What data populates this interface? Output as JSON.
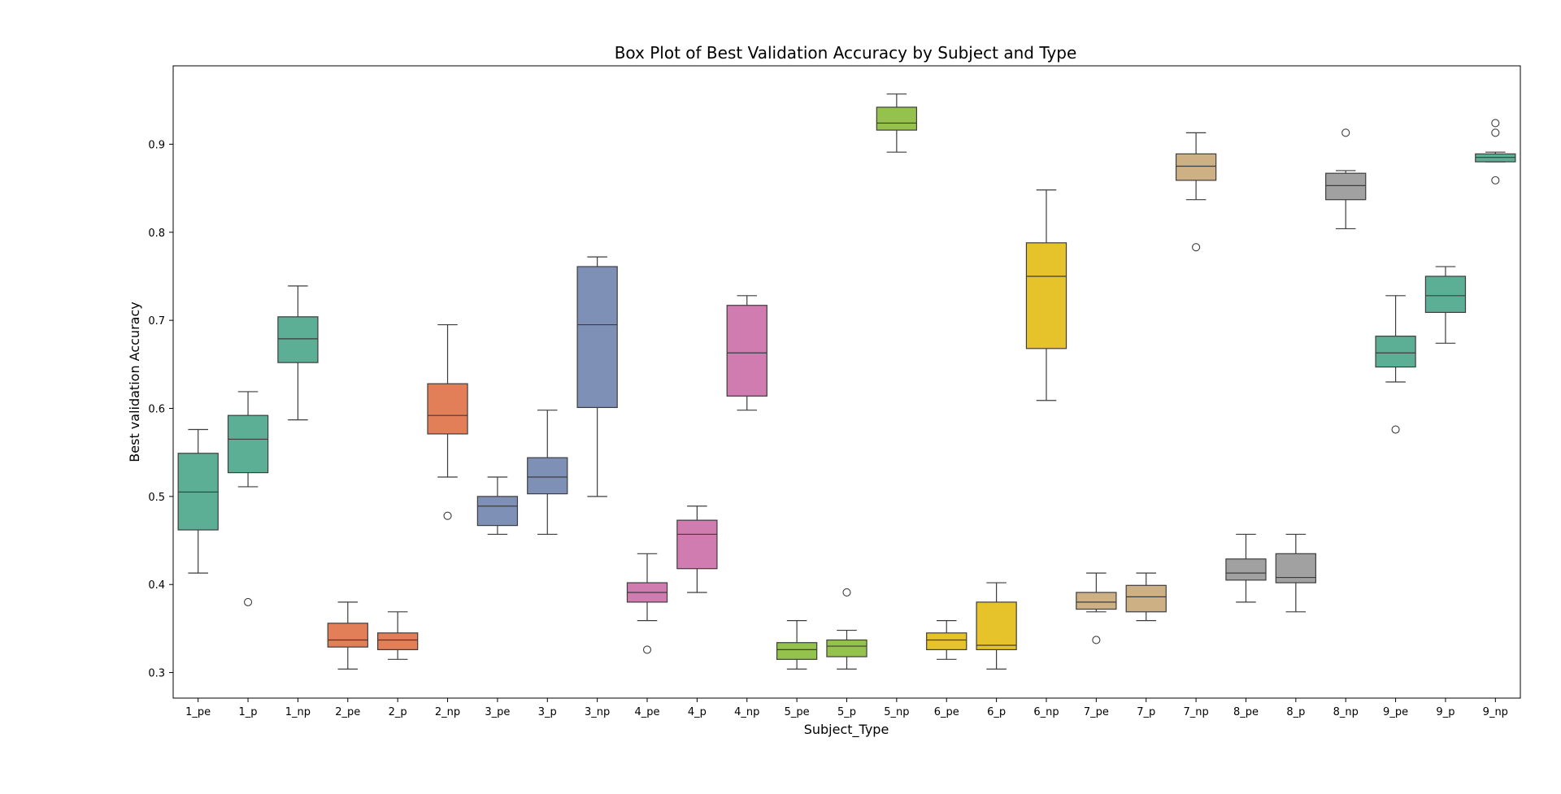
{
  "chart_data": {
    "type": "box",
    "title": "Box Plot of Best Validation Accuracy by Subject and Type",
    "xlabel": "Subject_Type",
    "ylabel": "Best validation Accuracy",
    "ylim": [
      0.271,
      0.989
    ],
    "yticks": [
      "0.3",
      "0.4",
      "0.5",
      "0.6",
      "0.7",
      "0.8",
      "0.9"
    ],
    "grid": false,
    "legend": "none",
    "categories": [
      "1_pe",
      "1_p",
      "1_np",
      "2_pe",
      "2_p",
      "2_np",
      "3_pe",
      "3_p",
      "3_np",
      "4_pe",
      "4_p",
      "4_np",
      "5_pe",
      "5_p",
      "5_np",
      "6_pe",
      "6_p",
      "6_np",
      "7_pe",
      "7_p",
      "7_np",
      "8_pe",
      "8_p",
      "8_np",
      "9_pe",
      "9_p",
      "9_np"
    ],
    "colors": {
      "1": "#66c2a5",
      "2": "#fc8d62",
      "3": "#8da0cb",
      "4": "#e78ac3",
      "5": "#a6d854",
      "6": "#ffd92f",
      "7": "#e5c494",
      "8": "#b3b3b3",
      "9": "#66c2a5"
    },
    "box_stats": [
      {
        "label": "1_pe",
        "color_group": "1",
        "min": 0.413,
        "q1": 0.462,
        "median": 0.505,
        "q3": 0.549,
        "max": 0.576,
        "outliers": []
      },
      {
        "label": "1_p",
        "color_group": "1",
        "min": 0.511,
        "q1": 0.527,
        "median": 0.565,
        "q3": 0.592,
        "max": 0.619,
        "outliers": [
          0.38
        ]
      },
      {
        "label": "1_np",
        "color_group": "1",
        "min": 0.587,
        "q1": 0.652,
        "median": 0.679,
        "q3": 0.704,
        "max": 0.739,
        "outliers": []
      },
      {
        "label": "2_pe",
        "color_group": "2",
        "min": 0.304,
        "q1": 0.329,
        "median": 0.337,
        "q3": 0.356,
        "max": 0.38,
        "outliers": []
      },
      {
        "label": "2_p",
        "color_group": "2",
        "min": 0.315,
        "q1": 0.326,
        "median": 0.337,
        "q3": 0.345,
        "max": 0.369,
        "outliers": []
      },
      {
        "label": "2_np",
        "color_group": "2",
        "min": 0.522,
        "q1": 0.571,
        "median": 0.592,
        "q3": 0.628,
        "max": 0.695,
        "outliers": [
          0.478
        ]
      },
      {
        "label": "3_pe",
        "color_group": "3",
        "min": 0.457,
        "q1": 0.467,
        "median": 0.489,
        "q3": 0.5,
        "max": 0.522,
        "outliers": []
      },
      {
        "label": "3_p",
        "color_group": "3",
        "min": 0.457,
        "q1": 0.503,
        "median": 0.522,
        "q3": 0.544,
        "max": 0.598,
        "outliers": []
      },
      {
        "label": "3_np",
        "color_group": "3",
        "min": 0.5,
        "q1": 0.601,
        "median": 0.695,
        "q3": 0.761,
        "max": 0.772,
        "outliers": []
      },
      {
        "label": "4_pe",
        "color_group": "4",
        "min": 0.359,
        "q1": 0.38,
        "median": 0.391,
        "q3": 0.402,
        "max": 0.435,
        "outliers": [
          0.326
        ]
      },
      {
        "label": "4_p",
        "color_group": "4",
        "min": 0.391,
        "q1": 0.418,
        "median": 0.457,
        "q3": 0.473,
        "max": 0.489,
        "outliers": []
      },
      {
        "label": "4_np",
        "color_group": "4",
        "min": 0.598,
        "q1": 0.614,
        "median": 0.663,
        "q3": 0.717,
        "max": 0.728,
        "outliers": []
      },
      {
        "label": "5_pe",
        "color_group": "5",
        "min": 0.304,
        "q1": 0.315,
        "median": 0.326,
        "q3": 0.334,
        "max": 0.359,
        "outliers": []
      },
      {
        "label": "5_p",
        "color_group": "5",
        "min": 0.304,
        "q1": 0.318,
        "median": 0.33,
        "q3": 0.337,
        "max": 0.348,
        "outliers": [
          0.391
        ]
      },
      {
        "label": "5_np",
        "color_group": "5",
        "min": 0.891,
        "q1": 0.916,
        "median": 0.924,
        "q3": 0.942,
        "max": 0.957,
        "outliers": []
      },
      {
        "label": "6_pe",
        "color_group": "6",
        "min": 0.315,
        "q1": 0.326,
        "median": 0.337,
        "q3": 0.345,
        "max": 0.359,
        "outliers": []
      },
      {
        "label": "6_p",
        "color_group": "6",
        "min": 0.304,
        "q1": 0.326,
        "median": 0.331,
        "q3": 0.38,
        "max": 0.402,
        "outliers": []
      },
      {
        "label": "6_np",
        "color_group": "6",
        "min": 0.609,
        "q1": 0.668,
        "median": 0.75,
        "q3": 0.788,
        "max": 0.848,
        "outliers": []
      },
      {
        "label": "7_pe",
        "color_group": "7",
        "min": 0.369,
        "q1": 0.372,
        "median": 0.38,
        "q3": 0.391,
        "max": 0.413,
        "outliers": [
          0.337
        ]
      },
      {
        "label": "7_p",
        "color_group": "7",
        "min": 0.359,
        "q1": 0.369,
        "median": 0.386,
        "q3": 0.399,
        "max": 0.413,
        "outliers": []
      },
      {
        "label": "7_np",
        "color_group": "7",
        "min": 0.837,
        "q1": 0.859,
        "median": 0.875,
        "q3": 0.889,
        "max": 0.913,
        "outliers": [
          0.783
        ]
      },
      {
        "label": "8_pe",
        "color_group": "8",
        "min": 0.38,
        "q1": 0.405,
        "median": 0.413,
        "q3": 0.429,
        "max": 0.457,
        "outliers": []
      },
      {
        "label": "8_p",
        "color_group": "8",
        "min": 0.369,
        "q1": 0.402,
        "median": 0.408,
        "q3": 0.435,
        "max": 0.457,
        "outliers": []
      },
      {
        "label": "8_np",
        "color_group": "8",
        "min": 0.804,
        "q1": 0.837,
        "median": 0.853,
        "q3": 0.867,
        "max": 0.87,
        "outliers": [
          0.913
        ]
      },
      {
        "label": "9_pe",
        "color_group": "9",
        "min": 0.63,
        "q1": 0.647,
        "median": 0.663,
        "q3": 0.682,
        "max": 0.728,
        "outliers": [
          0.576
        ]
      },
      {
        "label": "9_p",
        "color_group": "9",
        "min": 0.674,
        "q1": 0.709,
        "median": 0.728,
        "q3": 0.75,
        "max": 0.761,
        "outliers": []
      },
      {
        "label": "9_np",
        "color_group": "9",
        "min": 0.88,
        "q1": 0.88,
        "median": 0.885,
        "q3": 0.889,
        "max": 0.891,
        "outliers": [
          0.924,
          0.913,
          0.859
        ]
      }
    ]
  }
}
